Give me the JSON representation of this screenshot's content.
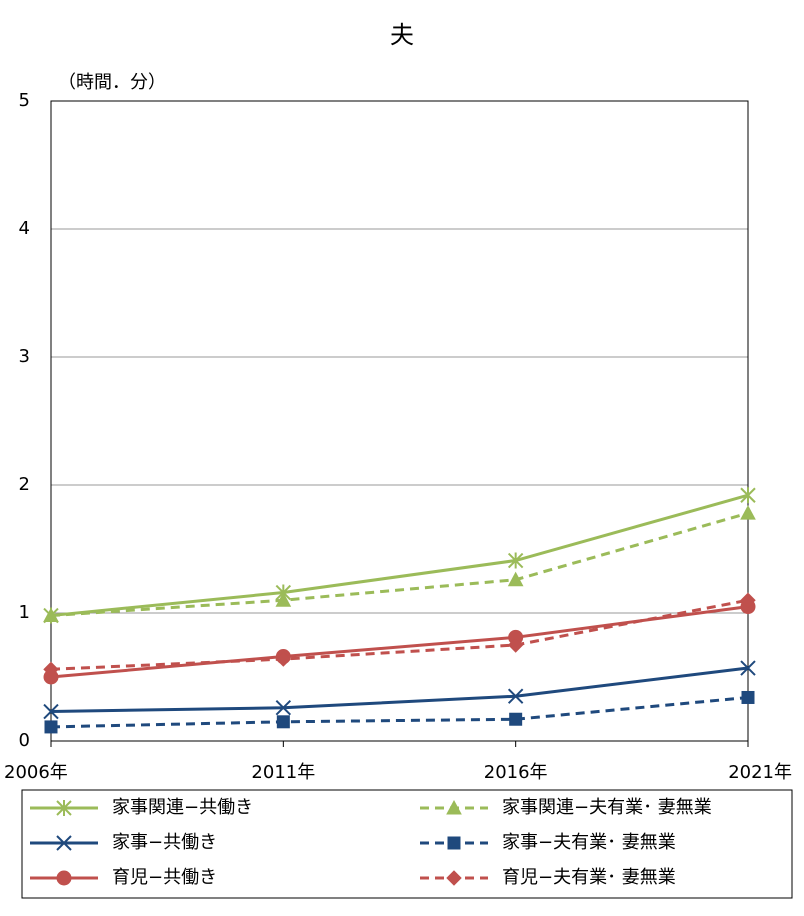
{
  "chart_data": {
    "type": "line",
    "title": "夫",
    "y_label": "（時間．分）",
    "categories": [
      "2006年",
      "2011年",
      "2016年",
      "2021年"
    ],
    "ylim": [
      0,
      5
    ],
    "yticks": [
      0,
      1,
      2,
      3,
      4,
      5
    ],
    "grid": true,
    "series": [
      {
        "name": "家事関連−共働き",
        "color": "#9bbb59",
        "marker": "asterisk",
        "dashed": false,
        "values": [
          0.98,
          1.16,
          1.41,
          1.92
        ]
      },
      {
        "name": "家事関連−夫有業･ 妻無業",
        "color": "#9bbb59",
        "marker": "triangle",
        "dashed": true,
        "values": [
          0.98,
          1.1,
          1.26,
          1.78
        ]
      },
      {
        "name": "家事−共働き",
        "color": "#1f497d",
        "marker": "x",
        "dashed": false,
        "values": [
          0.23,
          0.26,
          0.35,
          0.57
        ]
      },
      {
        "name": "家事−夫有業･ 妻無業",
        "color": "#1f497d",
        "marker": "square",
        "dashed": true,
        "values": [
          0.11,
          0.15,
          0.17,
          0.34
        ]
      },
      {
        "name": "育児−共働き",
        "color": "#c0504d",
        "marker": "circle",
        "dashed": false,
        "values": [
          0.5,
          0.66,
          0.81,
          1.05
        ]
      },
      {
        "name": "育児−夫有業･ 妻無業",
        "color": "#c0504d",
        "marker": "diamond",
        "dashed": true,
        "values": [
          0.56,
          0.64,
          0.75,
          1.1
        ]
      }
    ]
  }
}
